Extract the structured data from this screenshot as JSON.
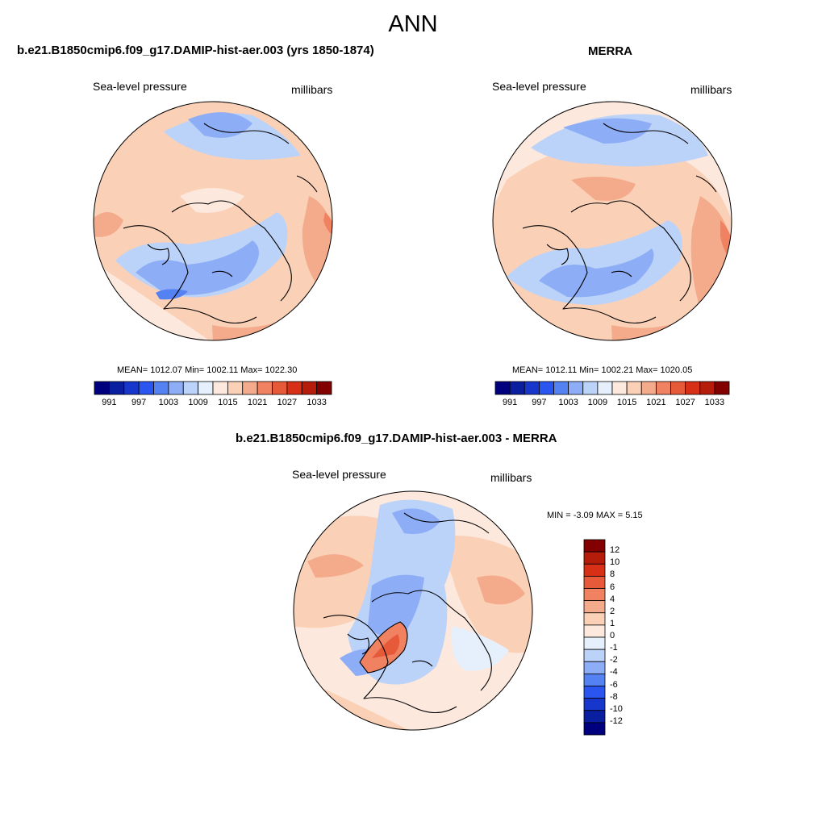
{
  "figure": {
    "title": "ANN"
  },
  "panels": {
    "model": {
      "title": "b.e21.B1850cmip6.f09_g17.DAMIP-hist-aer.003 (yrs 1850-1874)",
      "variable": "Sea-level pressure",
      "units": "millibars",
      "stats": "MEAN= 1012.07  Min= 1002.11  Max= 1022.30"
    },
    "obs": {
      "title": "MERRA",
      "variable": "Sea-level pressure",
      "units": "millibars",
      "stats": "MEAN= 1012.11  Min= 1002.21  Max= 1020.05"
    },
    "diff": {
      "title": "b.e21.B1850cmip6.f09_g17.DAMIP-hist-aer.003 - MERRA",
      "variable": "Sea-level pressure",
      "units": "millibars",
      "stats": "MIN =  -3.09 MAX =   5.15"
    }
  },
  "colorbars": {
    "absolute": {
      "colors": [
        "#00007f",
        "#0a1fa0",
        "#1737cc",
        "#2b55f0",
        "#5482f2",
        "#8dadf6",
        "#bcd3f9",
        "#e6f0fc",
        "#fce8dc",
        "#fad0b7",
        "#f4ab8c",
        "#f08262",
        "#e65a3a",
        "#d73016",
        "#b51c0a",
        "#820000"
      ],
      "tick_labels": [
        "991",
        "997",
        "1003",
        "1009",
        "1015",
        "1021",
        "1027",
        "1033"
      ]
    },
    "difference": {
      "colors": [
        "#00007f",
        "#0a1fa0",
        "#1737cc",
        "#2b55f0",
        "#5482f2",
        "#8dadf6",
        "#bcd3f9",
        "#e6f0fc",
        "#fce8dc",
        "#fad0b7",
        "#f4ab8c",
        "#f08262",
        "#e65a3a",
        "#d73016",
        "#b51c0a",
        "#820000"
      ],
      "tick_labels": [
        "12",
        "10",
        "8",
        "6",
        "4",
        "2",
        "1",
        "0",
        "-1",
        "-2",
        "-4",
        "-6",
        "-8",
        "-10",
        "-12"
      ]
    }
  }
}
